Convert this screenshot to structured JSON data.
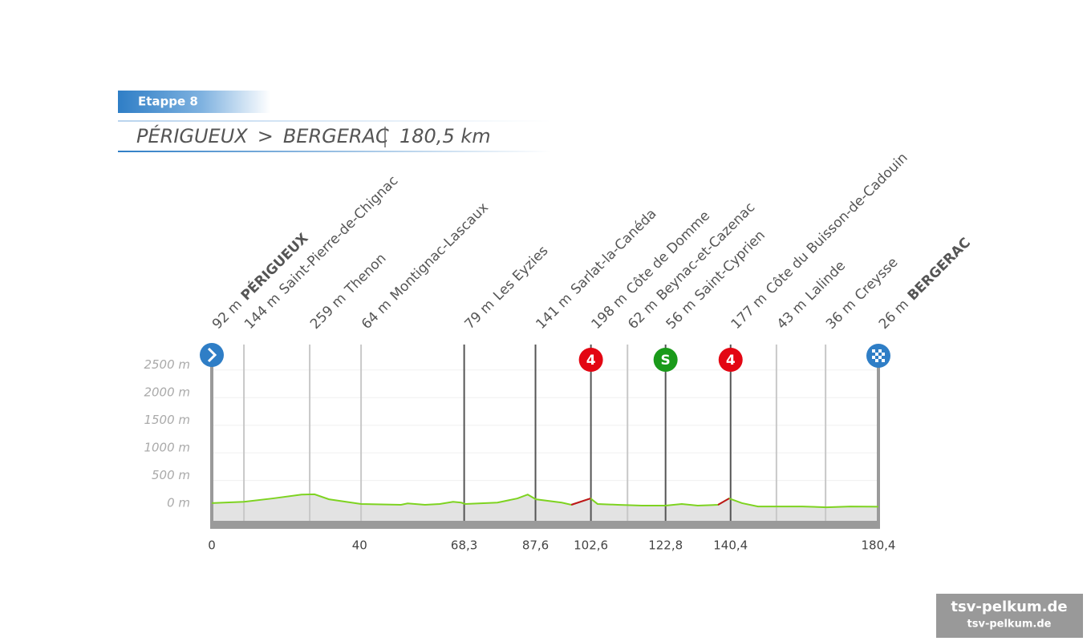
{
  "header": {
    "stage": "Etappe 8",
    "start": "PÉRIGUEUX",
    "arrow": ">",
    "finish": "BERGERAC",
    "distance": "180,5 km"
  },
  "chart_data": {
    "type": "profile",
    "xlim": [
      0,
      180.4
    ],
    "ylim": [
      -230,
      2960
    ],
    "yticks": [
      {
        "value": 0,
        "label": "0 m"
      },
      {
        "value": 500,
        "label": "500 m"
      },
      {
        "value": 1000,
        "label": "1000 m"
      },
      {
        "value": 1500,
        "label": "1500 m"
      },
      {
        "value": 2000,
        "label": "2000 m"
      },
      {
        "value": 2500,
        "label": "2500 m"
      }
    ],
    "xticks": [
      0,
      40,
      {
        "value": 68.3,
        "label": "68,3"
      },
      {
        "value": 87.6,
        "label": "87,6"
      },
      {
        "value": 102.6,
        "label": "102,6"
      },
      {
        "value": 122.8,
        "label": "122,8"
      },
      {
        "value": 140.4,
        "label": "140,4"
      },
      {
        "value": 180.4,
        "label": "180,4"
      }
    ],
    "grid": true,
    "color": "#7ed321",
    "climb_color": "#c0141c",
    "x": [
      0,
      8.7,
      16.5,
      24.3,
      27.8,
      31.7,
      40.4,
      51.2,
      53,
      57.7,
      61.7,
      65.3,
      67.5,
      68.6,
      77.3,
      82.7,
      85.5,
      87.7,
      94.7,
      97.3,
      102.5,
      104.4,
      109.8,
      116.4,
      122.8,
      127.2,
      131.5,
      137,
      140,
      143.5,
      147.8,
      153.3,
      159.8,
      166.3,
      172.8,
      180.4
    ],
    "values": [
      90,
      115,
      175,
      245,
      250,
      160,
      75,
      60,
      85,
      60,
      75,
      115,
      100,
      75,
      100,
      175,
      245,
      160,
      100,
      60,
      175,
      75,
      60,
      45,
      45,
      75,
      45,
      60,
      175,
      90,
      30,
      30,
      30,
      15,
      30,
      25
    ],
    "climbs": [
      [
        97.3,
        102.5
      ],
      [
        137,
        140
      ]
    ],
    "waypoints": [
      {
        "km": 0,
        "elevation_label": "92 m",
        "name": "PÉRIGUEUX",
        "bold": true,
        "major": true,
        "icon": "start"
      },
      {
        "km": 8.7,
        "elevation_label": "144 m",
        "name": "Saint-Pierre-de-Chignac"
      },
      {
        "km": 26.5,
        "elevation_label": "259 m",
        "name": "Thenon"
      },
      {
        "km": 40.4,
        "elevation_label": "64 m",
        "name": "Montignac-Lascaux"
      },
      {
        "km": 68.3,
        "elevation_label": "79 m",
        "name": "Les Eyzies",
        "major": true
      },
      {
        "km": 87.6,
        "elevation_label": "141 m",
        "name": "Sarlat-la-Canéda",
        "major": true
      },
      {
        "km": 102.6,
        "elevation_label": "198 m",
        "name": "Côte de Domme",
        "major": true,
        "badge": "4",
        "badge_color": "#e30613"
      },
      {
        "km": 112.5,
        "elevation_label": "62 m",
        "name": "Beynac-et-Cazenac"
      },
      {
        "km": 122.8,
        "elevation_label": "56 m",
        "name": "Saint-Cyprien",
        "major": true,
        "badge": "S",
        "badge_color": "#1a9a1a"
      },
      {
        "km": 140.4,
        "elevation_label": "177 m",
        "name": "Côte du Buisson-de-Cadouin",
        "major": true,
        "badge": "4",
        "badge_color": "#e30613"
      },
      {
        "km": 152.8,
        "elevation_label": "43 m",
        "name": "Lalinde"
      },
      {
        "km": 166.1,
        "elevation_label": "36 m",
        "name": "Creysse"
      },
      {
        "km": 180.4,
        "elevation_label": "26 m",
        "name": "BERGERAC",
        "bold": true,
        "major": true,
        "icon": "finish"
      }
    ]
  },
  "watermark": [
    "tsv-pelkum.de",
    "tsv-pelkum.de"
  ]
}
